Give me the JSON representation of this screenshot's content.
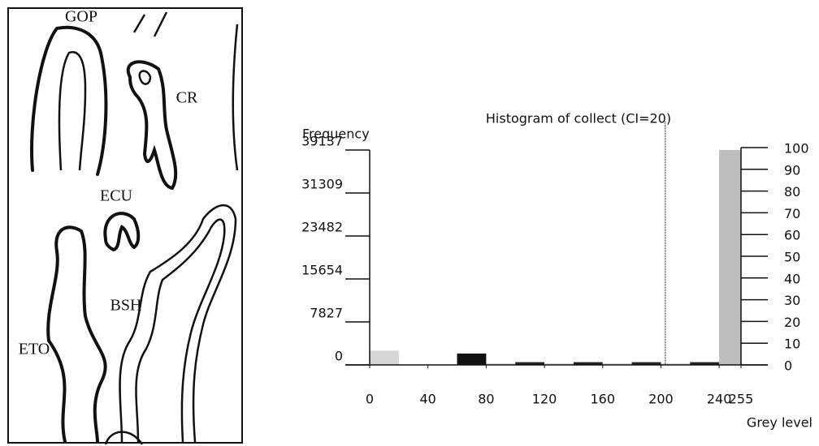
{
  "drawing": {
    "labels": [
      "GOP",
      "CR",
      "ECU",
      "BSH",
      "ETO"
    ]
  },
  "chart_data": {
    "type": "histogram",
    "title": "Histogram of collect (CI=20)",
    "y_label": "Frequency",
    "x_label": "Grey level",
    "bins": [
      0,
      20,
      40,
      60,
      80,
      100,
      120,
      140,
      160,
      180,
      200,
      220,
      240,
      255
    ],
    "values": [
      2600,
      0,
      0,
      2070,
      300,
      500,
      300,
      500,
      300,
      500,
      300,
      500,
      39137
    ],
    "bar_colors": [
      "#d6d6d6",
      "#d6d6d6",
      "#d6d6d6",
      "#111111",
      "#d6d6d6",
      "#222222",
      "#d6d6d6",
      "#222222",
      "#d6d6d6",
      "#222222",
      "#d6d6d6",
      "#222222",
      "#bdbdbd"
    ],
    "xlim": [
      0,
      255
    ],
    "xticks": [
      0,
      40,
      80,
      120,
      160,
      200,
      240,
      255
    ],
    "ylim": [
      0,
      39137
    ],
    "yticks": [
      0,
      7827,
      15654,
      23482,
      31309,
      39137
    ],
    "y2lim": [
      0,
      100
    ],
    "y2ticks": [
      0,
      10,
      20,
      30,
      40,
      50,
      60,
      70,
      80,
      90,
      100
    ],
    "threshold": 203
  }
}
